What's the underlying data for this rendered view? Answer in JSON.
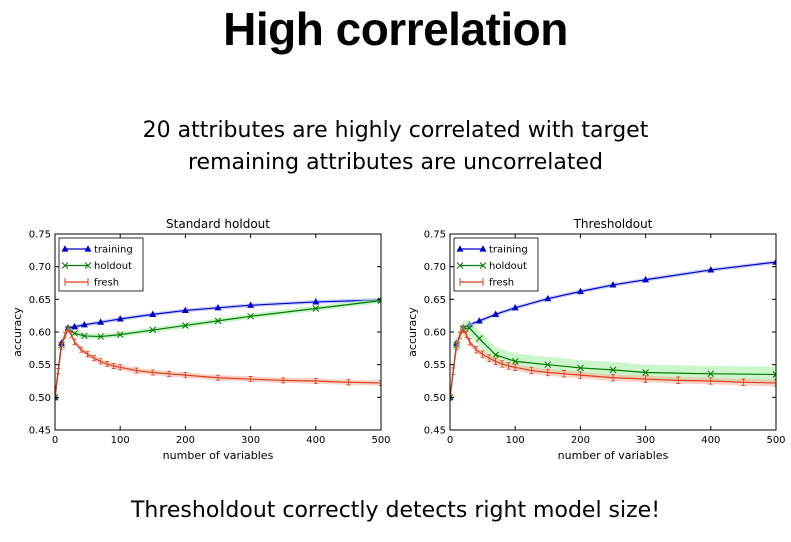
{
  "slide": {
    "title": "High correlation",
    "subtitle_line1": "20 attributes are highly correlated with target",
    "subtitle_line2": "remaining attributes are uncorrelated",
    "footer": "Thresholdout correctly detects right model size!"
  },
  "colors": {
    "training": "#0000cc",
    "holdout": "#007a00",
    "fresh": "#e03c1e",
    "training_band": "#aab4ff",
    "holdout_band": "#a8eea8",
    "fresh_band": "#f7b49e"
  },
  "chart_data": [
    {
      "type": "line",
      "title": "Standard holdout",
      "xlabel": "number of variables",
      "ylabel": "accuracy",
      "xlim": [
        0,
        500
      ],
      "ylim": [
        0.45,
        0.75
      ],
      "xticks": [
        "0",
        "100",
        "200",
        "300",
        "400",
        "500"
      ],
      "yticks": [
        "0.45",
        "0.50",
        "0.55",
        "0.60",
        "0.65",
        "0.70",
        "0.75"
      ],
      "grid": false,
      "legend": "top-left",
      "series": [
        {
          "name": "training",
          "marker": "triangle",
          "x": [
            0,
            10,
            20,
            30,
            45,
            70,
            100,
            150,
            200,
            250,
            300,
            400,
            500
          ],
          "y": [
            0.5,
            0.583,
            0.606,
            0.608,
            0.611,
            0.615,
            0.62,
            0.627,
            0.633,
            0.637,
            0.641,
            0.646,
            0.649
          ],
          "band": 0.003
        },
        {
          "name": "holdout",
          "marker": "x",
          "x": [
            0,
            10,
            20,
            30,
            45,
            70,
            100,
            150,
            200,
            250,
            300,
            400,
            500
          ],
          "y": [
            0.5,
            0.58,
            0.604,
            0.598,
            0.594,
            0.593,
            0.596,
            0.603,
            0.61,
            0.617,
            0.624,
            0.636,
            0.648
          ],
          "band": 0.004
        },
        {
          "name": "fresh",
          "marker": "errorbar",
          "x": [
            0,
            5,
            10,
            15,
            20,
            25,
            30,
            40,
            50,
            60,
            70,
            80,
            90,
            100,
            125,
            150,
            175,
            200,
            250,
            300,
            350,
            400,
            450,
            500
          ],
          "y": [
            0.5,
            0.54,
            0.578,
            0.595,
            0.604,
            0.596,
            0.585,
            0.573,
            0.566,
            0.56,
            0.555,
            0.551,
            0.548,
            0.546,
            0.541,
            0.538,
            0.536,
            0.534,
            0.53,
            0.528,
            0.526,
            0.525,
            0.523,
            0.522
          ],
          "band": 0.004
        }
      ]
    },
    {
      "type": "line",
      "title": "Thresholdout",
      "xlabel": "number of variables",
      "ylabel": "accuracy",
      "xlim": [
        0,
        500
      ],
      "ylim": [
        0.45,
        0.75
      ],
      "xticks": [
        "0",
        "100",
        "200",
        "300",
        "400",
        "500"
      ],
      "yticks": [
        "0.45",
        "0.50",
        "0.55",
        "0.60",
        "0.65",
        "0.70",
        "0.75"
      ],
      "grid": false,
      "legend": "top-left",
      "series": [
        {
          "name": "training",
          "marker": "triangle",
          "x": [
            0,
            10,
            20,
            30,
            45,
            70,
            100,
            150,
            200,
            250,
            300,
            400,
            500
          ],
          "y": [
            0.5,
            0.583,
            0.607,
            0.611,
            0.617,
            0.627,
            0.637,
            0.651,
            0.662,
            0.672,
            0.68,
            0.695,
            0.707
          ],
          "band": 0.003
        },
        {
          "name": "holdout",
          "marker": "x",
          "x": [
            0,
            10,
            20,
            30,
            45,
            70,
            100,
            150,
            200,
            250,
            300,
            400,
            500
          ],
          "y": [
            0.5,
            0.58,
            0.605,
            0.606,
            0.59,
            0.565,
            0.555,
            0.55,
            0.545,
            0.542,
            0.538,
            0.536,
            0.535
          ],
          "band": 0.012
        },
        {
          "name": "fresh",
          "marker": "errorbar",
          "x": [
            0,
            5,
            10,
            15,
            20,
            25,
            30,
            40,
            50,
            60,
            70,
            80,
            90,
            100,
            125,
            150,
            175,
            200,
            250,
            300,
            350,
            400,
            450,
            500
          ],
          "y": [
            0.5,
            0.54,
            0.578,
            0.595,
            0.604,
            0.596,
            0.585,
            0.573,
            0.566,
            0.56,
            0.555,
            0.551,
            0.548,
            0.546,
            0.541,
            0.538,
            0.536,
            0.534,
            0.53,
            0.528,
            0.526,
            0.525,
            0.523,
            0.522
          ],
          "band": 0.005
        }
      ]
    }
  ]
}
